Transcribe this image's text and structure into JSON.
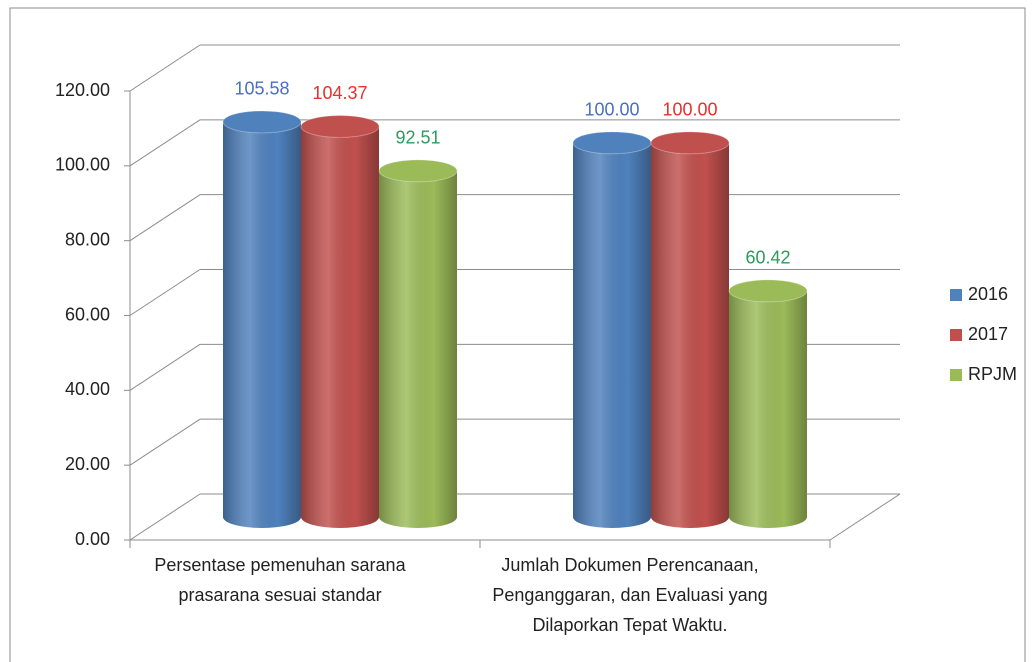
{
  "chart_data": {
    "type": "bar3d",
    "categories": [
      "Persentase pemenuhan sarana prasarana sesuai standar",
      "Jumlah Dokumen Perencanaan, Penganggaran, dan Evaluasi yang Dilaporkan Tepat Waktu."
    ],
    "series": [
      {
        "name": "2016",
        "color": "#4f81bd",
        "label_color": "#4a6fc0",
        "values": [
          105.58,
          100
        ],
        "value_labels": [
          "105.58",
          "100.00"
        ]
      },
      {
        "name": "2017",
        "color": "#c0504d",
        "label_color": "#e8302c",
        "values": [
          104.37,
          100
        ],
        "value_labels": [
          "104.37",
          "100.00"
        ]
      },
      {
        "name": "RPJM",
        "color": "#9bbb59",
        "label_color": "#2e9a5e",
        "values": [
          92.51,
          60.42
        ],
        "value_labels": [
          "92.51",
          "60.42"
        ]
      }
    ],
    "ylim": [
      0,
      120
    ],
    "yticks": [
      {
        "value": 0,
        "label": "0.00"
      },
      {
        "value": 20,
        "label": "20.00"
      },
      {
        "value": 40,
        "label": "40.00"
      },
      {
        "value": 60,
        "label": "60.00"
      },
      {
        "value": 80,
        "label": "80.00"
      },
      {
        "value": 100,
        "label": "100.00"
      },
      {
        "value": 120,
        "label": "120.00"
      }
    ],
    "grid": true,
    "legend": "right"
  }
}
